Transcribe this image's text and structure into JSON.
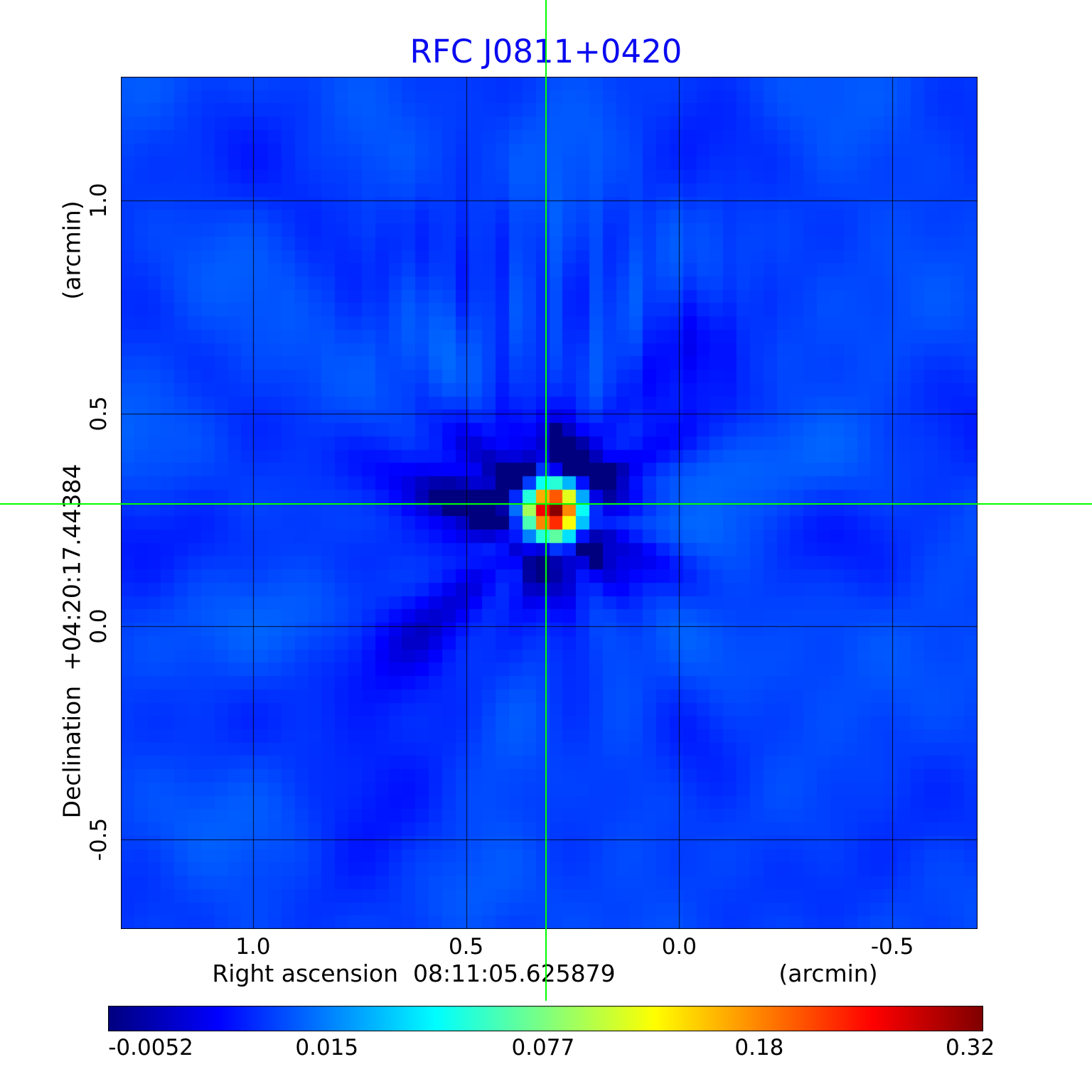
{
  "title": "RFC J0811+0420",
  "colors": {
    "title": "#0a0af0",
    "crosshair": "#00ff00",
    "grid": "#000000",
    "background": "#ffffff"
  },
  "axes": {
    "y_label": "Declination  +04:20:17.44384",
    "y_unit": "(arcmin)",
    "x_label": "Right ascension  08:11:05.625879",
    "x_unit": "(arcmin)"
  },
  "chart_data": {
    "type": "heatmap",
    "title": "RFC J0811+0420",
    "xlabel": "Right ascension 08:11:05.625879 (arcmin)",
    "ylabel": "Declination +04:20:17.44384 (arcmin)",
    "colormap": "jet",
    "color_scale": "sqrt",
    "grid": true,
    "x_range_arcmin": [
      1.31,
      -0.7
    ],
    "y_range_arcmin": [
      -0.71,
      1.29
    ],
    "x_ticks": [
      1.0,
      0.5,
      0.0,
      -0.5
    ],
    "y_ticks": [
      1.0,
      0.5,
      0.0,
      -0.5
    ],
    "colorbar_ticks": [
      -0.0052,
      0.015,
      0.077,
      0.18,
      0.32
    ],
    "colorbar_range": [
      -0.006,
      0.33
    ],
    "background_level": 0.006,
    "source": {
      "ra": "08:11:05.625879",
      "dec": "+04:20:17.44384",
      "x_arcmin": 0.312,
      "y_arcmin": 0.288,
      "peak": 0.32
    }
  }
}
